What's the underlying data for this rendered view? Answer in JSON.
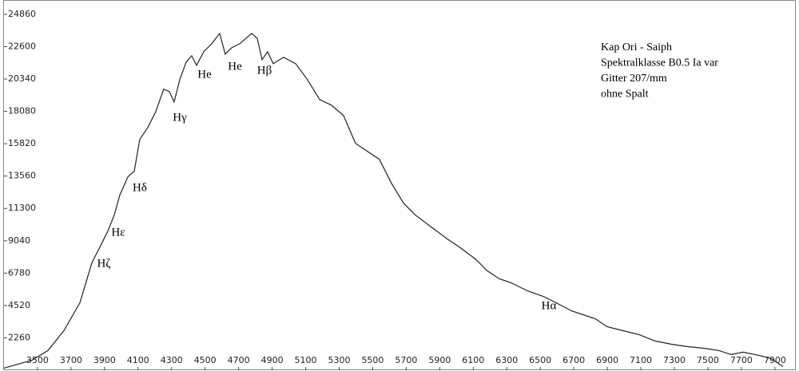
{
  "chart_data": {
    "type": "line",
    "x": [
      3300,
      3467,
      3562,
      3657,
      3753,
      3824,
      3872,
      3920,
      3958,
      3991,
      4039,
      4077,
      4110,
      4158,
      4206,
      4253,
      4287,
      4315,
      4349,
      4387,
      4420,
      4449,
      4492,
      4539,
      4587,
      4620,
      4659,
      4706,
      4744,
      4778,
      4811,
      4840,
      4873,
      4906,
      4968,
      5040,
      5111,
      5183,
      5254,
      5326,
      5398,
      5469,
      5540,
      5612,
      5684,
      5755,
      5850,
      5946,
      6017,
      6113,
      6184,
      6256,
      6327,
      6423,
      6518,
      6613,
      6685,
      6756,
      6828,
      6899,
      6995,
      7090,
      7185,
      7281,
      7376,
      7471,
      7567,
      7638,
      7710,
      7805,
      7877,
      7948
    ],
    "series": [
      {
        "color": "#222222",
        "values": [
          145,
          701,
          1369,
          2761,
          4710,
          7493,
          8607,
          9720,
          10833,
          12225,
          13505,
          13895,
          16122,
          16957,
          18071,
          19629,
          19462,
          18739,
          20297,
          21522,
          21967,
          21299,
          22246,
          22803,
          23526,
          22079,
          22524,
          22803,
          23192,
          23526,
          23192,
          21689,
          22246,
          21411,
          21856,
          21411,
          20297,
          18906,
          18516,
          17792,
          15844,
          15287,
          14730,
          13060,
          11668,
          10833,
          9998,
          9163,
          8607,
          7771,
          6936,
          6380,
          6101,
          5545,
          5155,
          4598,
          4153,
          3875,
          3596,
          3040,
          2761,
          2483,
          2038,
          1815,
          1648,
          1536,
          1369,
          1091,
          1258,
          1035,
          813,
          256
        ]
      }
    ],
    "xlim": [
      3300,
      8020
    ],
    "ylim": [
      0,
      25860
    ],
    "xticks": [
      3500,
      3700,
      3900,
      4100,
      4300,
      4500,
      4700,
      4900,
      5100,
      5300,
      5500,
      5700,
      5900,
      6100,
      6300,
      6500,
      6700,
      6900,
      7100,
      7300,
      7500,
      7700,
      7900
    ],
    "yticks": [
      2260,
      4520,
      6780,
      9040,
      11300,
      13560,
      15820,
      18080,
      20340,
      22600,
      24860
    ],
    "annotations": [
      "Hζ",
      "Hε",
      "Hδ",
      "Hγ",
      "He",
      "He",
      "Hβ",
      "Hα"
    ],
    "info": [
      "Kap Ori - Saiph",
      "Spektralklasse B0.5 Ia var",
      "Gitter 207/mm",
      "ohne Spalt"
    ]
  }
}
